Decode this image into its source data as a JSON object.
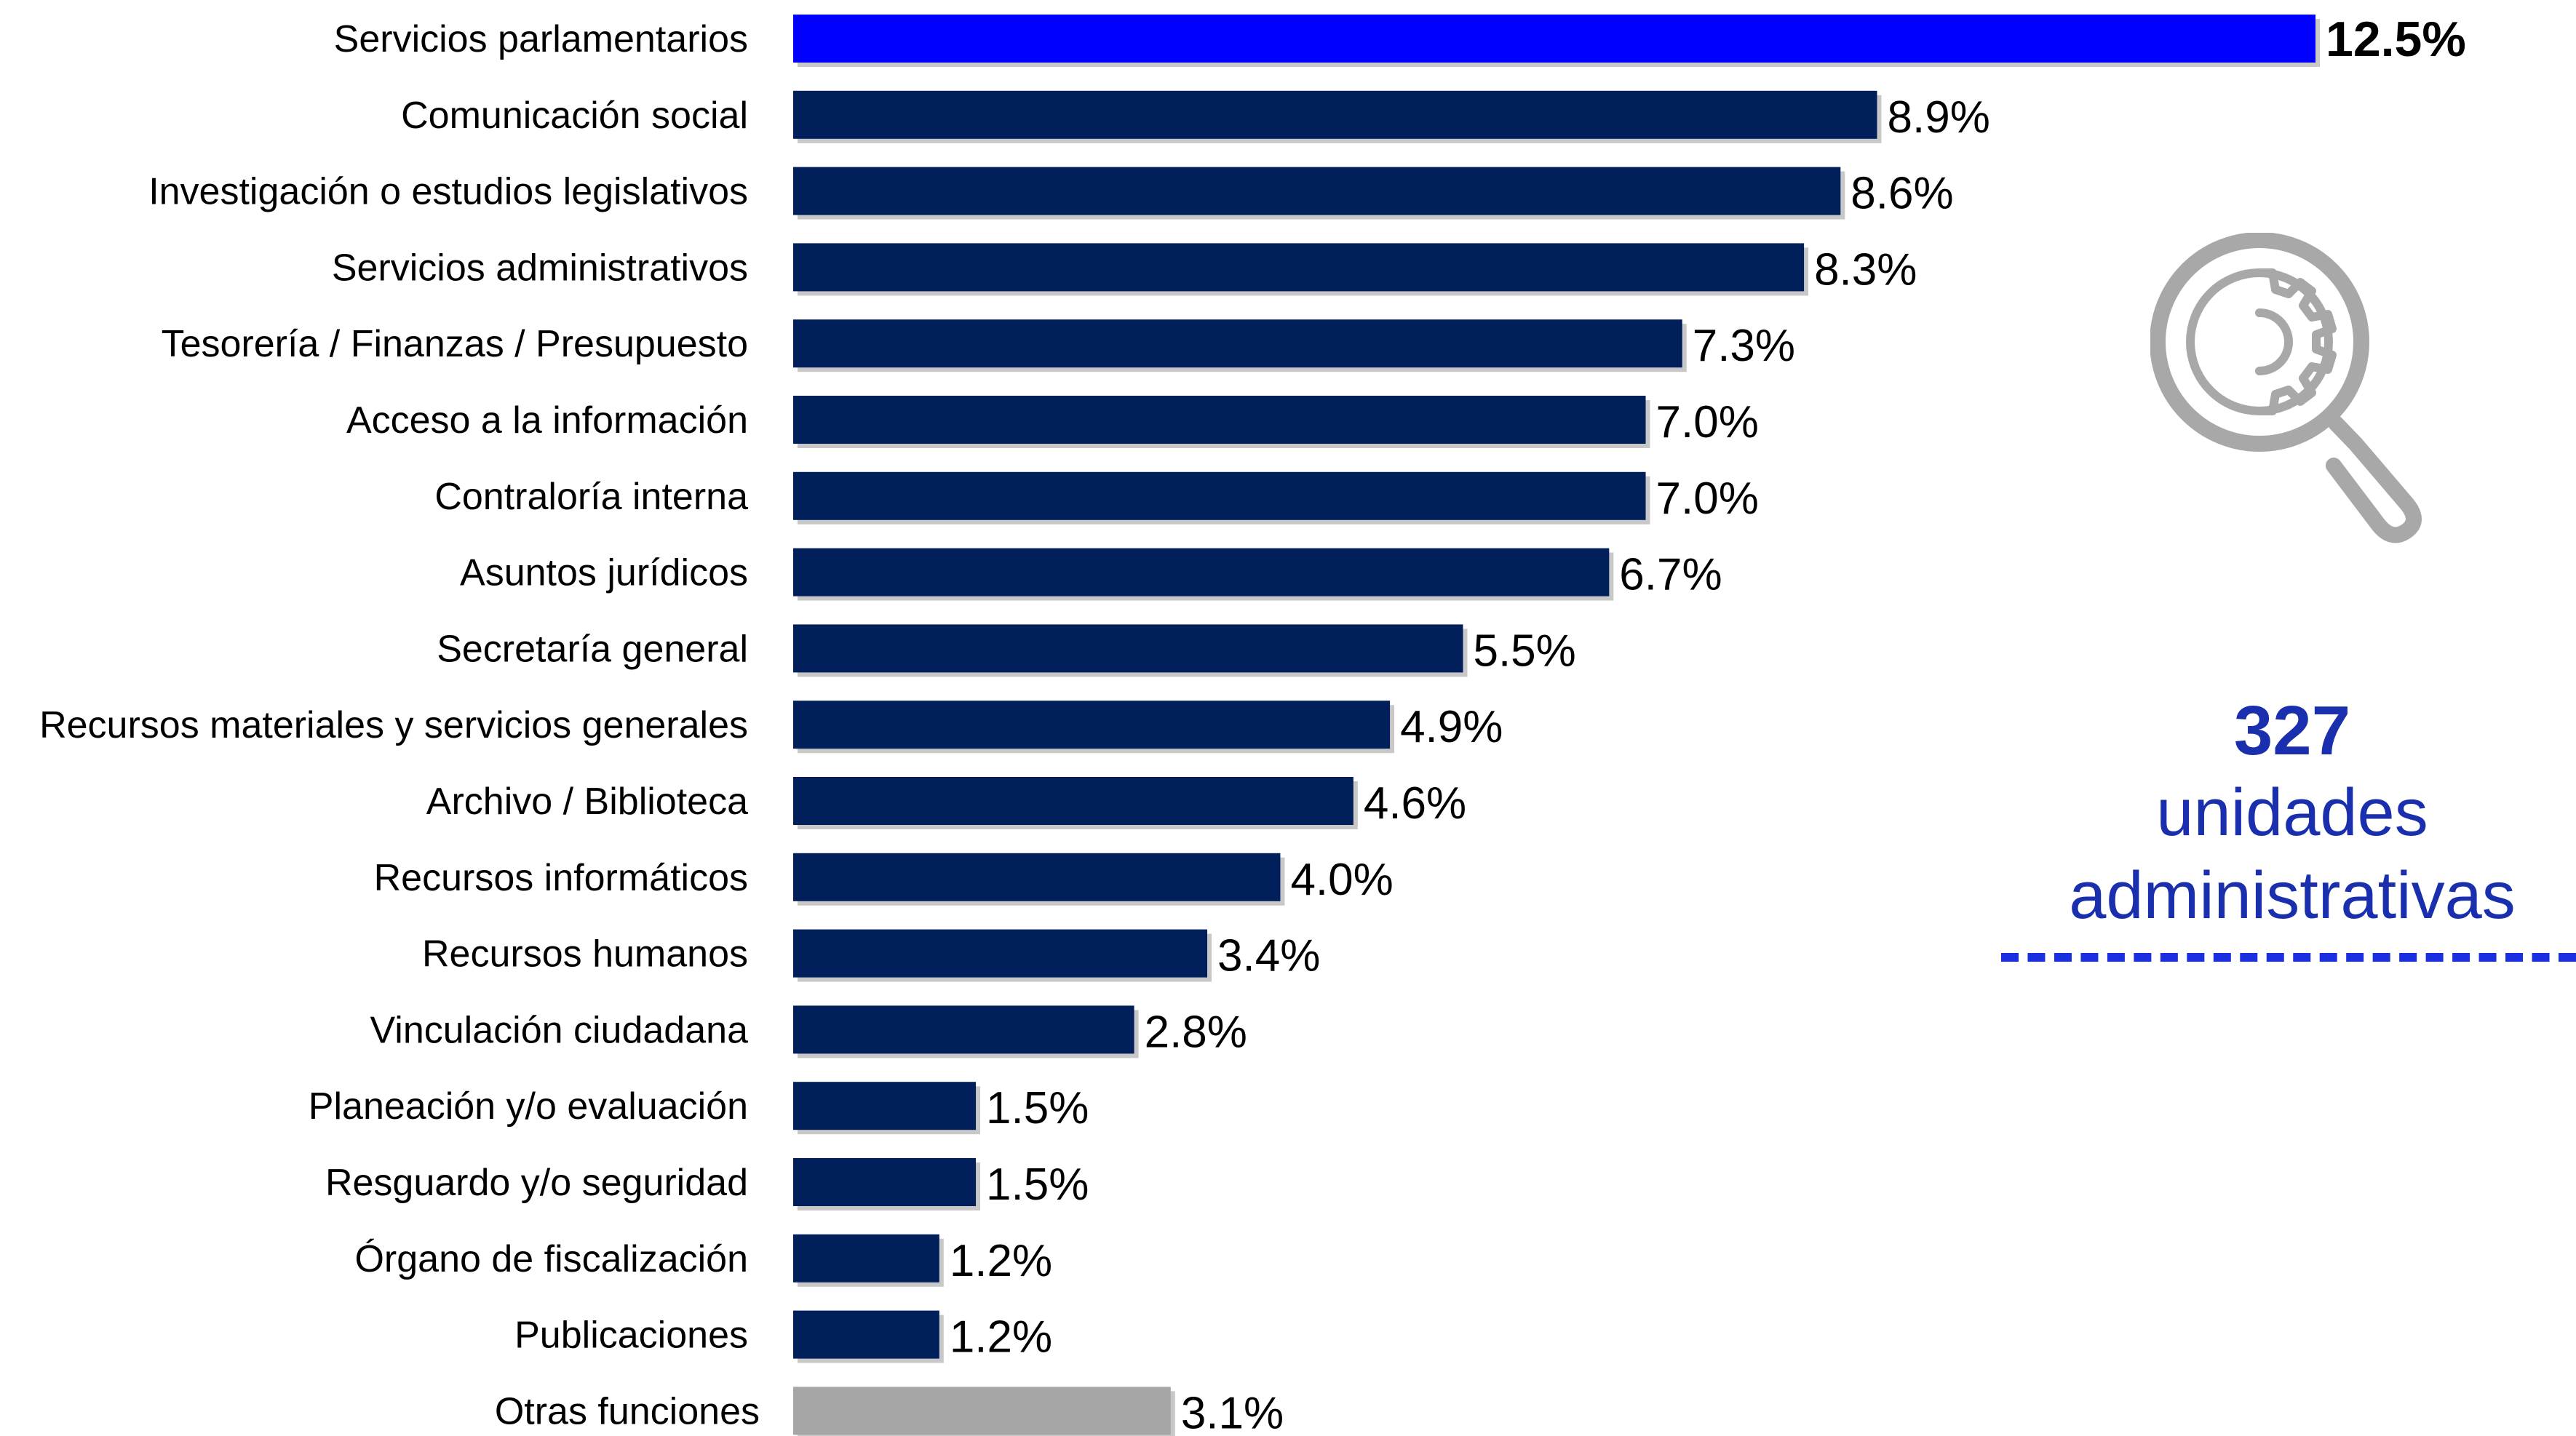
{
  "chart_data": {
    "type": "bar",
    "orientation": "horizontal",
    "categories": [
      "Servicios parlamentarios",
      "Comunicación social",
      "Investigación o estudios legislativos",
      "Servicios administrativos",
      "Tesorería / Finanzas / Presupuesto",
      "Acceso a la información",
      "Contraloría interna",
      "Asuntos jurídicos",
      "Secretaría general",
      "Recursos materiales y servicios generales",
      "Archivo / Biblioteca",
      "Recursos informáticos",
      "Recursos humanos",
      "Vinculación ciudadana",
      "Planeación y/o evaluación",
      "Resguardo y/o seguridad",
      "Órgano de fiscalización",
      "Publicaciones",
      "Otras funciones"
    ],
    "values": [
      12.5,
      8.9,
      8.6,
      8.3,
      7.3,
      7.0,
      7.0,
      6.7,
      5.5,
      4.9,
      4.6,
      4.0,
      3.4,
      2.8,
      1.5,
      1.5,
      1.2,
      1.2,
      3.1
    ],
    "value_labels": [
      "12.5%",
      "8.9%",
      "8.6%",
      "8.3%",
      "7.3%",
      "7.0%",
      "7.0%",
      "6.7%",
      "5.5%",
      "4.9%",
      "4.6%",
      "4.0%",
      "3.4%",
      "2.8%",
      "1.5%",
      "1.5%",
      "1.2%",
      "1.2%",
      "3.1%"
    ],
    "bar_colors": [
      "#0000ff",
      "#001f5b",
      "#001f5b",
      "#001f5b",
      "#001f5b",
      "#001f5b",
      "#001f5b",
      "#001f5b",
      "#001f5b",
      "#001f5b",
      "#001f5b",
      "#001f5b",
      "#001f5b",
      "#001f5b",
      "#001f5b",
      "#001f5b",
      "#001f5b",
      "#001f5b",
      "#a6a6a6"
    ],
    "highlight_index": 0,
    "title": "",
    "xlabel": "",
    "ylabel": "",
    "xlim": [
      0,
      12.5
    ],
    "grid": false,
    "legend": "none"
  },
  "side_panel": {
    "icon": "magnifier-gear-icon",
    "count": "327",
    "label": "unidades\nadministrativas",
    "accent_color": "#1a2fae",
    "dash_color": "#1a2fe0"
  }
}
